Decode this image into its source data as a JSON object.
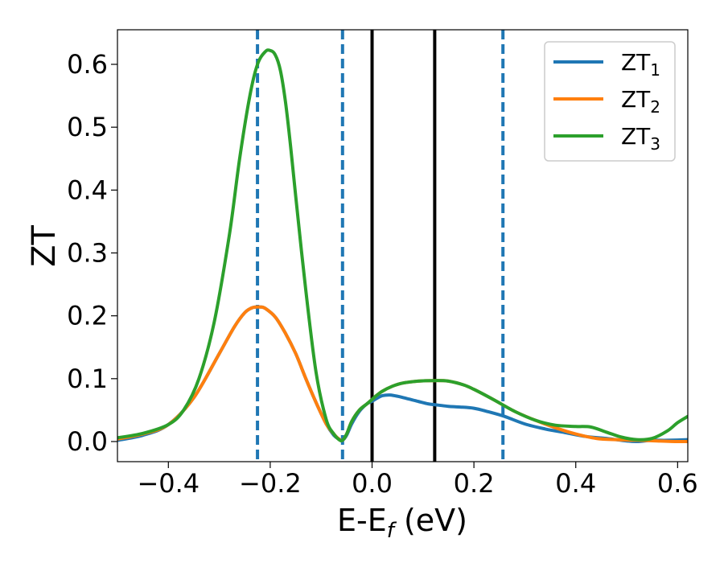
{
  "chart_data": {
    "type": "line",
    "xlabel_main": "E-E",
    "xlabel_sub": "f",
    "xlabel_unit": " (eV)",
    "ylabel": "ZT",
    "xlim": [
      -0.5,
      0.62
    ],
    "ylim": [
      -0.032,
      0.655
    ],
    "xticks": [
      -0.4,
      -0.2,
      0.0,
      0.2,
      0.4,
      0.6
    ],
    "xtick_labels": [
      "−0.4",
      "−0.2",
      "0.0",
      "0.2",
      "0.4",
      "0.6"
    ],
    "yticks": [
      0.0,
      0.1,
      0.2,
      0.3,
      0.4,
      0.5,
      0.6
    ],
    "ytick_labels": [
      "0.0",
      "0.1",
      "0.2",
      "0.3",
      "0.4",
      "0.5",
      "0.6"
    ],
    "grid": false,
    "legend_position": "top-right",
    "vlines": [
      {
        "x": -0.225,
        "style": "dashed",
        "color": "#1f77b4"
      },
      {
        "x": -0.058,
        "style": "dashed",
        "color": "#1f77b4"
      },
      {
        "x": 0.0,
        "style": "solid",
        "color": "#000000"
      },
      {
        "x": 0.123,
        "style": "solid",
        "color": "#000000"
      },
      {
        "x": 0.257,
        "style": "dashed",
        "color": "#1f77b4"
      }
    ],
    "series": [
      {
        "name": "ZT",
        "sub": "1",
        "color": "#1f77b4",
        "x": [
          -0.5,
          -0.45,
          -0.4,
          -0.35,
          -0.3,
          -0.27,
          -0.25,
          -0.235,
          -0.22,
          -0.21,
          -0.19,
          -0.17,
          -0.15,
          -0.13,
          -0.11,
          -0.09,
          -0.075,
          -0.065,
          -0.058,
          -0.05,
          -0.04,
          -0.025,
          -0.01,
          0.0,
          0.01,
          0.02,
          0.035,
          0.05,
          0.07,
          0.09,
          0.11,
          0.13,
          0.15,
          0.17,
          0.2,
          0.23,
          0.26,
          0.3,
          0.34,
          0.38,
          0.42,
          0.46,
          0.5,
          0.52,
          0.55,
          0.58,
          0.62
        ],
        "y": [
          0.002,
          0.01,
          0.027,
          0.07,
          0.14,
          0.183,
          0.205,
          0.213,
          0.214,
          0.212,
          0.198,
          0.172,
          0.14,
          0.1,
          0.062,
          0.028,
          0.01,
          0.004,
          0.002,
          0.01,
          0.028,
          0.048,
          0.06,
          0.064,
          0.069,
          0.073,
          0.074,
          0.072,
          0.068,
          0.064,
          0.06,
          0.058,
          0.056,
          0.055,
          0.053,
          0.047,
          0.04,
          0.028,
          0.02,
          0.014,
          0.008,
          0.005,
          0.001,
          0.0,
          0.002,
          0.002,
          0.003
        ]
      },
      {
        "name": "ZT",
        "sub": "2",
        "color": "#ff7f0e",
        "x": [
          -0.5,
          -0.45,
          -0.4,
          -0.35,
          -0.3,
          -0.27,
          -0.25,
          -0.235,
          -0.22,
          -0.21,
          -0.19,
          -0.17,
          -0.15,
          -0.13,
          -0.11,
          -0.09,
          -0.075,
          -0.065,
          -0.058,
          -0.05,
          -0.04,
          -0.025,
          -0.01,
          0.0,
          0.01,
          0.02,
          0.04,
          0.06,
          0.09,
          0.12,
          0.15,
          0.18,
          0.2,
          0.24,
          0.28,
          0.32,
          0.36,
          0.4,
          0.44,
          0.48,
          0.52,
          0.56,
          0.6,
          0.62
        ],
        "y": [
          0.004,
          0.012,
          0.027,
          0.07,
          0.14,
          0.183,
          0.205,
          0.213,
          0.214,
          0.212,
          0.198,
          0.172,
          0.14,
          0.1,
          0.062,
          0.028,
          0.012,
          0.004,
          0.002,
          0.012,
          0.032,
          0.05,
          0.06,
          0.067,
          0.074,
          0.08,
          0.088,
          0.093,
          0.096,
          0.097,
          0.096,
          0.09,
          0.083,
          0.066,
          0.048,
          0.034,
          0.022,
          0.012,
          0.005,
          0.003,
          0.002,
          0.001,
          0.0,
          0.0
        ]
      },
      {
        "name": "ZT",
        "sub": "3",
        "color": "#2ca02c",
        "x": [
          -0.5,
          -0.45,
          -0.4,
          -0.37,
          -0.34,
          -0.31,
          -0.28,
          -0.26,
          -0.24,
          -0.225,
          -0.21,
          -0.2,
          -0.19,
          -0.18,
          -0.17,
          -0.16,
          -0.15,
          -0.13,
          -0.11,
          -0.09,
          -0.075,
          -0.065,
          -0.058,
          -0.05,
          -0.04,
          -0.025,
          -0.01,
          0.0,
          0.01,
          0.02,
          0.04,
          0.06,
          0.09,
          0.12,
          0.15,
          0.18,
          0.2,
          0.24,
          0.28,
          0.32,
          0.36,
          0.4,
          0.43,
          0.46,
          0.49,
          0.52,
          0.55,
          0.58,
          0.6,
          0.62
        ],
        "y": [
          0.006,
          0.013,
          0.027,
          0.05,
          0.1,
          0.19,
          0.33,
          0.45,
          0.55,
          0.6,
          0.62,
          0.622,
          0.615,
          0.59,
          0.54,
          0.47,
          0.39,
          0.24,
          0.11,
          0.035,
          0.012,
          0.003,
          0.002,
          0.012,
          0.032,
          0.05,
          0.06,
          0.067,
          0.074,
          0.08,
          0.088,
          0.093,
          0.096,
          0.097,
          0.096,
          0.09,
          0.083,
          0.066,
          0.048,
          0.034,
          0.026,
          0.024,
          0.023,
          0.015,
          0.007,
          0.003,
          0.005,
          0.017,
          0.03,
          0.04
        ]
      }
    ]
  }
}
